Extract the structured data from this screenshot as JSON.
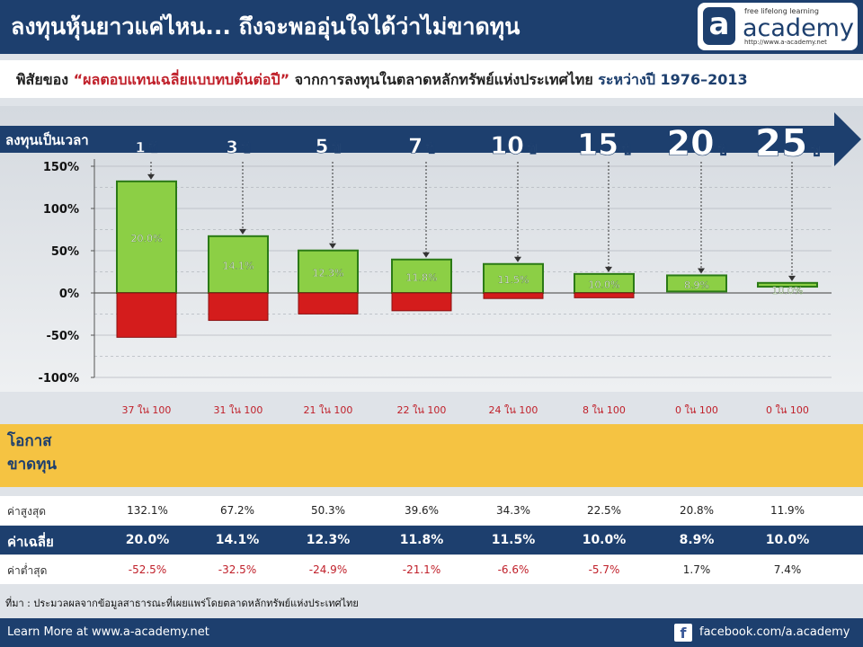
{
  "header": {
    "title": "ลงทุนหุ้นยาวแค่ไหน... ถึงจะพออุ่นใจได้ว่าไม่ขาดทุน"
  },
  "logo": {
    "letter": "a",
    "tagline": "free lifelong learning",
    "name": "academy",
    "url": "http://www.a-academy.net"
  },
  "subtitle": {
    "prefix": "พิสัยของ ",
    "highlight": "“ผลตอบแทนเฉลี่ยแบบทบต้นต่อปี”",
    "middle": " จากการลงทุนในตลาดหลักทรัพย์แห่งประเทศไทย ",
    "period": "ระหว่างปี 1976–2013"
  },
  "colors": {
    "navy": "#1d3f6e",
    "green": "#8ccf45",
    "red": "#d41c1c",
    "gold": "#f5c342"
  },
  "chart_data": {
    "type": "bar",
    "horizon_label": "ลงทุนเป็นเวลา",
    "categories": [
      "1 ปี",
      "3 ปี",
      "5 ปี",
      "7 ปี",
      "10 ปี",
      "15 ปี",
      "20 ปี",
      "25 ปี"
    ],
    "y_ticks": [
      "150%",
      "100%",
      "50%",
      "0%",
      "-50%",
      "-100%"
    ],
    "ylim": [
      -100,
      150
    ],
    "max": [
      132.1,
      67.2,
      50.3,
      39.6,
      34.3,
      22.5,
      20.8,
      11.9
    ],
    "avg": [
      20.0,
      14.1,
      12.3,
      11.8,
      11.5,
      10.0,
      8.9,
      10.0
    ],
    "min": [
      -52.5,
      -32.5,
      -24.9,
      -21.1,
      -6.6,
      -5.7,
      1.7,
      7.4
    ],
    "avg_labels": [
      "20.0%",
      "14.1%",
      "12.3%",
      "11.8%",
      "11.5%",
      "10.0%",
      "8.9%",
      "10.0%"
    ],
    "loss_chance": [
      37,
      31,
      21,
      22,
      24,
      8,
      0,
      0
    ],
    "loss_chance_labels": [
      "37 ใน 100",
      "31 ใน 100",
      "21 ใน 100",
      "22 ใน 100",
      "24 ใน 100",
      "8 ใน 100",
      "0 ใน 100",
      "0 ใน 100"
    ]
  },
  "chance_label": "โอกาส ขาดทุน",
  "table": {
    "max_label": "ค่าสูงสุด",
    "avg_label": "ค่าเฉลี่ย",
    "min_label": "ค่าต่ำสุด",
    "max": [
      "132.1%",
      "67.2%",
      "50.3%",
      "39.6%",
      "34.3%",
      "22.5%",
      "20.8%",
      "11.9%"
    ],
    "avg": [
      "20.0%",
      "14.1%",
      "12.3%",
      "11.8%",
      "11.5%",
      "10.0%",
      "8.9%",
      "10.0%"
    ],
    "min": [
      "-52.5%",
      "-32.5%",
      "-24.9%",
      "-21.1%",
      "-6.6%",
      "-5.7%",
      "1.7%",
      "7.4%"
    ]
  },
  "source": "ที่มา : ประมวลผลจากข้อมูลสาธารณะที่เผยแพร่โดยตลาดหลักทรัพย์แห่งประเทศไทย",
  "footer": {
    "left": "Learn More at www.a-academy.net",
    "fb_icon": "f",
    "right": "facebook.com/a.academy"
  }
}
